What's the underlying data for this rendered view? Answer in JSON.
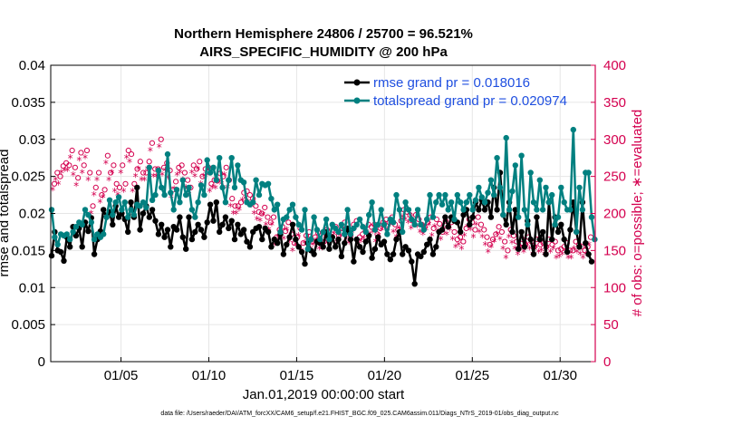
{
  "chart_data": {
    "type": "line",
    "title_line1": "Northern Hemisphere 24806 / 25700 = 96.521%",
    "title_line2": "AIRS_SPECIFIC_HUMIDITY @ 200 hPa",
    "xlabel": "Jan.01,2019 00:00:00 start",
    "ylabel_left": "rmse and totalspread",
    "ylabel_right": "# of obs: o=possible; ∗=evaluated",
    "footer": "data file: /Users/raeder/DAI/ATM_forcXX/CAM6_setup/f.e21.FHIST_BGC.f09_025.CAM6assim.011/Diags_NTrS_2019-01/obs_diag_output.nc",
    "x_ticks": [
      "01/05",
      "01/10",
      "01/15",
      "01/20",
      "01/25",
      "01/30"
    ],
    "x_tick_days": [
      5,
      10,
      15,
      20,
      25,
      30
    ],
    "xlim_days": [
      1,
      32
    ],
    "ylim_left": [
      0,
      0.04
    ],
    "left_ticks": [
      "0",
      "0.005",
      "0.01",
      "0.015",
      "0.02",
      "0.025",
      "0.03",
      "0.035",
      "0.04"
    ],
    "ylim_right": [
      0,
      400
    ],
    "right_ticks": [
      "0",
      "50",
      "100",
      "150",
      "200",
      "250",
      "300",
      "350",
      "400"
    ],
    "colors": {
      "rmse": "#000000",
      "spread": "#008080",
      "obs": "#d4004f",
      "legend_text": "#1f4fe0"
    },
    "series": [
      {
        "name": "rmse",
        "legend": "rmse grand pr = 0.018016",
        "values": [
          0.0143,
          0.0175,
          0.015,
          0.0148,
          0.0136,
          0.0168,
          0.0155,
          0.0182,
          0.017,
          0.018,
          0.0155,
          0.0188,
          0.0176,
          0.0194,
          0.0145,
          0.0165,
          0.0176,
          0.0205,
          0.0195,
          0.0202,
          0.0185,
          0.021,
          0.0195,
          0.02,
          0.0192,
          0.0175,
          0.0215,
          0.0195,
          0.0235,
          0.0178,
          0.02,
          0.021,
          0.0195,
          0.0205,
          0.019,
          0.0172,
          0.0185,
          0.0168,
          0.0178,
          0.0155,
          0.0182,
          0.0178,
          0.0195,
          0.0168,
          0.0152,
          0.0195,
          0.0165,
          0.0175,
          0.0185,
          0.0178,
          0.0168,
          0.0188,
          0.0212,
          0.019,
          0.0215,
          0.0175,
          0.0185,
          0.0195,
          0.018,
          0.019,
          0.0165,
          0.0185,
          0.0172,
          0.0178,
          0.0162,
          0.0155,
          0.0175,
          0.018,
          0.0182,
          0.0165,
          0.018,
          0.0175,
          0.0155,
          0.0165,
          0.016,
          0.0172,
          0.0145,
          0.0158,
          0.0168,
          0.0185,
          0.0165,
          0.0155,
          0.0148,
          0.0132,
          0.016,
          0.015,
          0.0145,
          0.0162,
          0.016,
          0.0155,
          0.0175,
          0.0152,
          0.0168,
          0.0155,
          0.0165,
          0.0142,
          0.016,
          0.018,
          0.0165,
          0.0135,
          0.0165,
          0.0155,
          0.0148,
          0.0162,
          0.017,
          0.014,
          0.0152,
          0.0168,
          0.0158,
          0.0162,
          0.0145,
          0.0138,
          0.0145,
          0.0165,
          0.0175,
          0.0145,
          0.0155,
          0.015,
          0.0135,
          0.0105,
          0.0145,
          0.0142,
          0.0148,
          0.0158,
          0.0165,
          0.0145,
          0.0155,
          0.0175,
          0.0178,
          0.0195,
          0.0182,
          0.0195,
          0.019,
          0.0188,
          0.0175,
          0.0198,
          0.0205,
          0.0185,
          0.0195,
          0.0215,
          0.0205,
          0.0218,
          0.0205,
          0.0215,
          0.0195,
          0.0235,
          0.0205,
          0.0255,
          0.0198,
          0.0185,
          0.0215,
          0.0175,
          0.0205,
          0.0152,
          0.0175,
          0.0155,
          0.019,
          0.0165,
          0.0145,
          0.0195,
          0.0165,
          0.0175,
          0.0145,
          0.0215,
          0.0165,
          0.0195,
          0.0175,
          0.0185,
          0.0165,
          0.0148,
          0.0178,
          0.0215,
          0.0175,
          0.0155,
          0.0215,
          0.016,
          0.0145,
          0.0135
        ]
      },
      {
        "name": "totalspread",
        "legend": "totalspread grand pr = 0.020974",
        "values": [
          0.0205,
          0.0168,
          0.0158,
          0.0172,
          0.017,
          0.0172,
          0.0165,
          0.0175,
          0.0182,
          0.0188,
          0.0185,
          0.0205,
          0.0198,
          0.0188,
          0.0165,
          0.0172,
          0.0168,
          0.0172,
          0.0195,
          0.0218,
          0.0198,
          0.0215,
          0.0222,
          0.0205,
          0.0215,
          0.0195,
          0.0205,
          0.0198,
          0.0212,
          0.021,
          0.0215,
          0.0208,
          0.0262,
          0.0218,
          0.0225,
          0.0258,
          0.0235,
          0.0225,
          0.028,
          0.0228,
          0.0205,
          0.0232,
          0.0215,
          0.0245,
          0.0225,
          0.0235,
          0.0205,
          0.0195,
          0.0215,
          0.0238,
          0.0225,
          0.0272,
          0.0255,
          0.0262,
          0.0245,
          0.0275,
          0.0235,
          0.0215,
          0.0245,
          0.0275,
          0.0235,
          0.0265,
          0.0245,
          0.0242,
          0.0215,
          0.0212,
          0.0215,
          0.0245,
          0.0225,
          0.024,
          0.0238,
          0.024,
          0.022,
          0.0205,
          0.0212,
          0.0175,
          0.0192,
          0.0195,
          0.0205,
          0.0212,
          0.0195,
          0.0185,
          0.0178,
          0.0205,
          0.0152,
          0.0165,
          0.0195,
          0.0178,
          0.0165,
          0.0175,
          0.0192,
          0.0165,
          0.0185,
          0.018,
          0.0175,
          0.0185,
          0.0172,
          0.0205,
          0.0172,
          0.018,
          0.0185,
          0.0192,
          0.0182,
          0.0175,
          0.0198,
          0.0215,
          0.0178,
          0.0185,
          0.0205,
          0.0185,
          0.0172,
          0.0192,
          0.0188,
          0.0225,
          0.0205,
          0.0175,
          0.0215,
          0.0205,
          0.0192,
          0.0185,
          0.0205,
          0.0185,
          0.0178,
          0.0192,
          0.0225,
          0.0195,
          0.0215,
          0.0225,
          0.0212,
          0.0225,
          0.0205,
          0.0215,
          0.0192,
          0.0225,
          0.0215,
          0.0205,
          0.0215,
          0.0225,
          0.0205,
          0.0218,
          0.0235,
          0.0222,
          0.0215,
          0.0228,
          0.0245,
          0.0225,
          0.0275,
          0.0235,
          0.0198,
          0.0302,
          0.0205,
          0.023,
          0.0265,
          0.0195,
          0.0278,
          0.0205,
          0.0185,
          0.0255,
          0.0215,
          0.0205,
          0.0245,
          0.0205,
          0.0235,
          0.0215,
          0.0225,
          0.0185,
          0.0195,
          0.0235,
          0.0215,
          0.0205,
          0.0205,
          0.0313,
          0.0175,
          0.0235,
          0.0205,
          0.0255,
          0.0255,
          0.0195,
          0.0165
        ]
      }
    ],
    "obs_possible": [
      240,
      255,
      250,
      264,
      268,
      265,
      285,
      262,
      248,
      282,
      265,
      285,
      255,
      210,
      235,
      255,
      225,
      232,
      278,
      255,
      265,
      240,
      235,
      265,
      240,
      285,
      280,
      240,
      260,
      270,
      255,
      255,
      270,
      295,
      260,
      260,
      300,
      262,
      268,
      258,
      232,
      243,
      262,
      265,
      255,
      245,
      235,
      265,
      260,
      270,
      250,
      260,
      262,
      240,
      245,
      244,
      254,
      250,
      262,
      245,
      220,
      210,
      210,
      215,
      228,
      230,
      225,
      220,
      210,
      202,
      200,
      208,
      195,
      188,
      195,
      168,
      178,
      182,
      176,
      188,
      172,
      160,
      168,
      180,
      160,
      170,
      175,
      162,
      168,
      174,
      162,
      162,
      178,
      170,
      178,
      182,
      170,
      180,
      188,
      175,
      170,
      185,
      190,
      168,
      172,
      176,
      185,
      182,
      185,
      172,
      180,
      188,
      192,
      188,
      195,
      185,
      178,
      190,
      205,
      202,
      198,
      190,
      198,
      192,
      185,
      182,
      188,
      195,
      180,
      192,
      186,
      175,
      190,
      182,
      188,
      175,
      165,
      168,
      162,
      180,
      192,
      188,
      178,
      195,
      185,
      178,
      168,
      158,
      165,
      172,
      182,
      175,
      162,
      150,
      178,
      170,
      162,
      155,
      165,
      158,
      168,
      162,
      155,
      165,
      158,
      160,
      155,
      165,
      158,
      162,
      150,
      152,
      155,
      160,
      150,
      150,
      162,
      158,
      155,
      150,
      155,
      168
    ],
    "obs_evaluated": [
      232,
      245,
      240,
      255,
      258,
      258,
      275,
      252,
      238,
      272,
      255,
      275,
      245,
      200,
      225,
      245,
      215,
      222,
      268,
      245,
      255,
      230,
      225,
      255,
      230,
      275,
      270,
      230,
      250,
      260,
      245,
      245,
      260,
      285,
      250,
      250,
      290,
      252,
      258,
      248,
      222,
      233,
      252,
      255,
      245,
      235,
      225,
      255,
      250,
      260,
      240,
      250,
      252,
      230,
      235,
      234,
      244,
      240,
      252,
      235,
      210,
      200,
      200,
      205,
      218,
      220,
      215,
      210,
      200,
      192,
      190,
      198,
      185,
      178,
      185,
      158,
      168,
      172,
      166,
      178,
      162,
      150,
      158,
      170,
      150,
      160,
      165,
      152,
      158,
      164,
      152,
      152,
      168,
      160,
      168,
      172,
      160,
      170,
      178,
      165,
      160,
      175,
      180,
      158,
      162,
      166,
      175,
      172,
      175,
      162,
      170,
      178,
      182,
      178,
      185,
      175,
      168,
      180,
      195,
      192,
      188,
      180,
      188,
      182,
      175,
      172,
      178,
      185,
      170,
      182,
      176,
      165,
      180,
      172,
      178,
      165,
      155,
      158,
      152,
      170,
      182,
      178,
      168,
      185,
      175,
      168,
      158,
      148,
      155,
      162,
      172,
      165,
      152,
      140,
      168,
      160,
      152,
      145,
      155,
      148,
      158,
      152,
      145,
      155,
      148,
      150,
      145,
      155,
      148,
      152,
      140,
      142,
      145,
      150,
      140,
      140,
      152,
      148,
      145,
      140,
      145,
      158
    ]
  }
}
